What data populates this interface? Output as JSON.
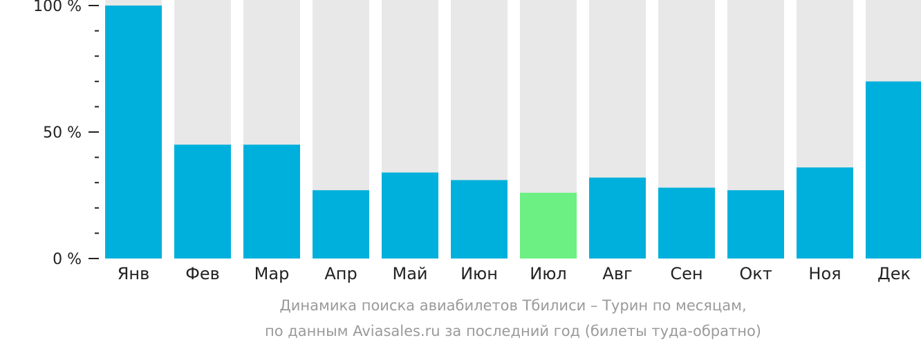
{
  "chart_data": {
    "type": "bar",
    "categories": [
      "Янв",
      "Фев",
      "Мар",
      "Апр",
      "Май",
      "Июн",
      "Июл",
      "Авг",
      "Сен",
      "Окт",
      "Ноя",
      "Дек"
    ],
    "values": [
      100,
      45,
      45,
      27,
      34,
      31,
      26,
      32,
      28,
      27,
      36,
      70
    ],
    "ylim": [
      0,
      100
    ],
    "yticks": [
      {
        "value": 100,
        "label": "100 %"
      },
      {
        "value": 50,
        "label": "50 %"
      },
      {
        "value": 0,
        "label": "0 %"
      }
    ],
    "minor_ticks": [
      10,
      20,
      30,
      40,
      60,
      70,
      80,
      90
    ],
    "highlight_index": 6,
    "colors": {
      "bar": "#00b0dc",
      "highlight": "#6cf083",
      "background_bar": "#e8e8e8",
      "axis": "#222222"
    },
    "caption": [
      "Динамика поиска авиабилетов Тбилиси – Турин по месяцам,",
      "по данным Aviasales.ru за последний год (билеты туда-обратно)"
    ]
  }
}
